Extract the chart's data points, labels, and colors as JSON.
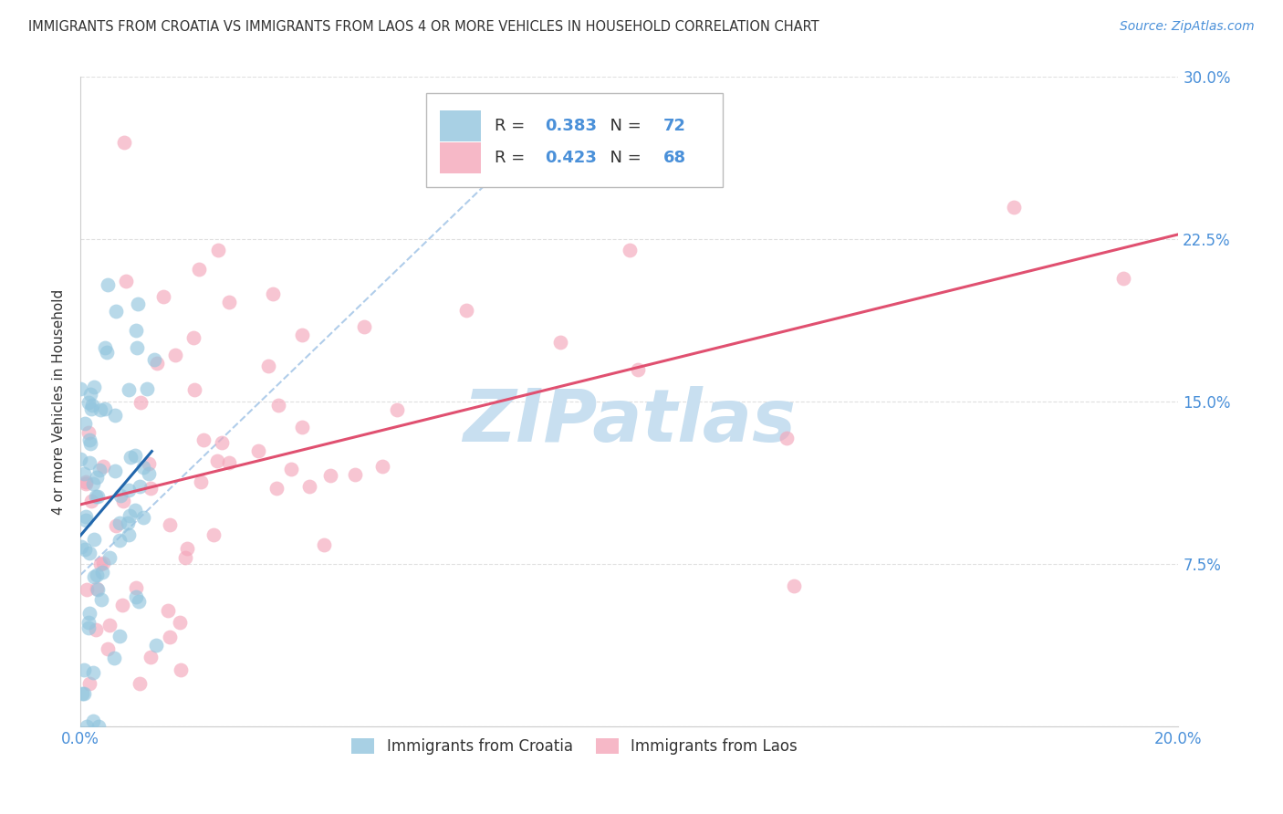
{
  "title": "IMMIGRANTS FROM CROATIA VS IMMIGRANTS FROM LAOS 4 OR MORE VEHICLES IN HOUSEHOLD CORRELATION CHART",
  "source": "Source: ZipAtlas.com",
  "ylabel": "4 or more Vehicles in Household",
  "xlim": [
    0.0,
    0.2
  ],
  "ylim": [
    0.0,
    0.3
  ],
  "croatia_R": 0.383,
  "croatia_N": 72,
  "laos_R": 0.423,
  "laos_N": 68,
  "croatia_color": "#92c5de",
  "laos_color": "#f4a6ba",
  "trendline_croatia_color": "#2166ac",
  "trendline_laos_color": "#e05070",
  "diagonal_color": "#a8c8e8",
  "background_color": "#ffffff",
  "watermark_text": "ZIPatlas",
  "watermark_color": "#c8dff0",
  "legend_label_croatia": "Immigrants from Croatia",
  "legend_label_laos": "Immigrants from Laos",
  "axis_color": "#4a90d9",
  "text_color": "#333333",
  "grid_color": "#cccccc"
}
